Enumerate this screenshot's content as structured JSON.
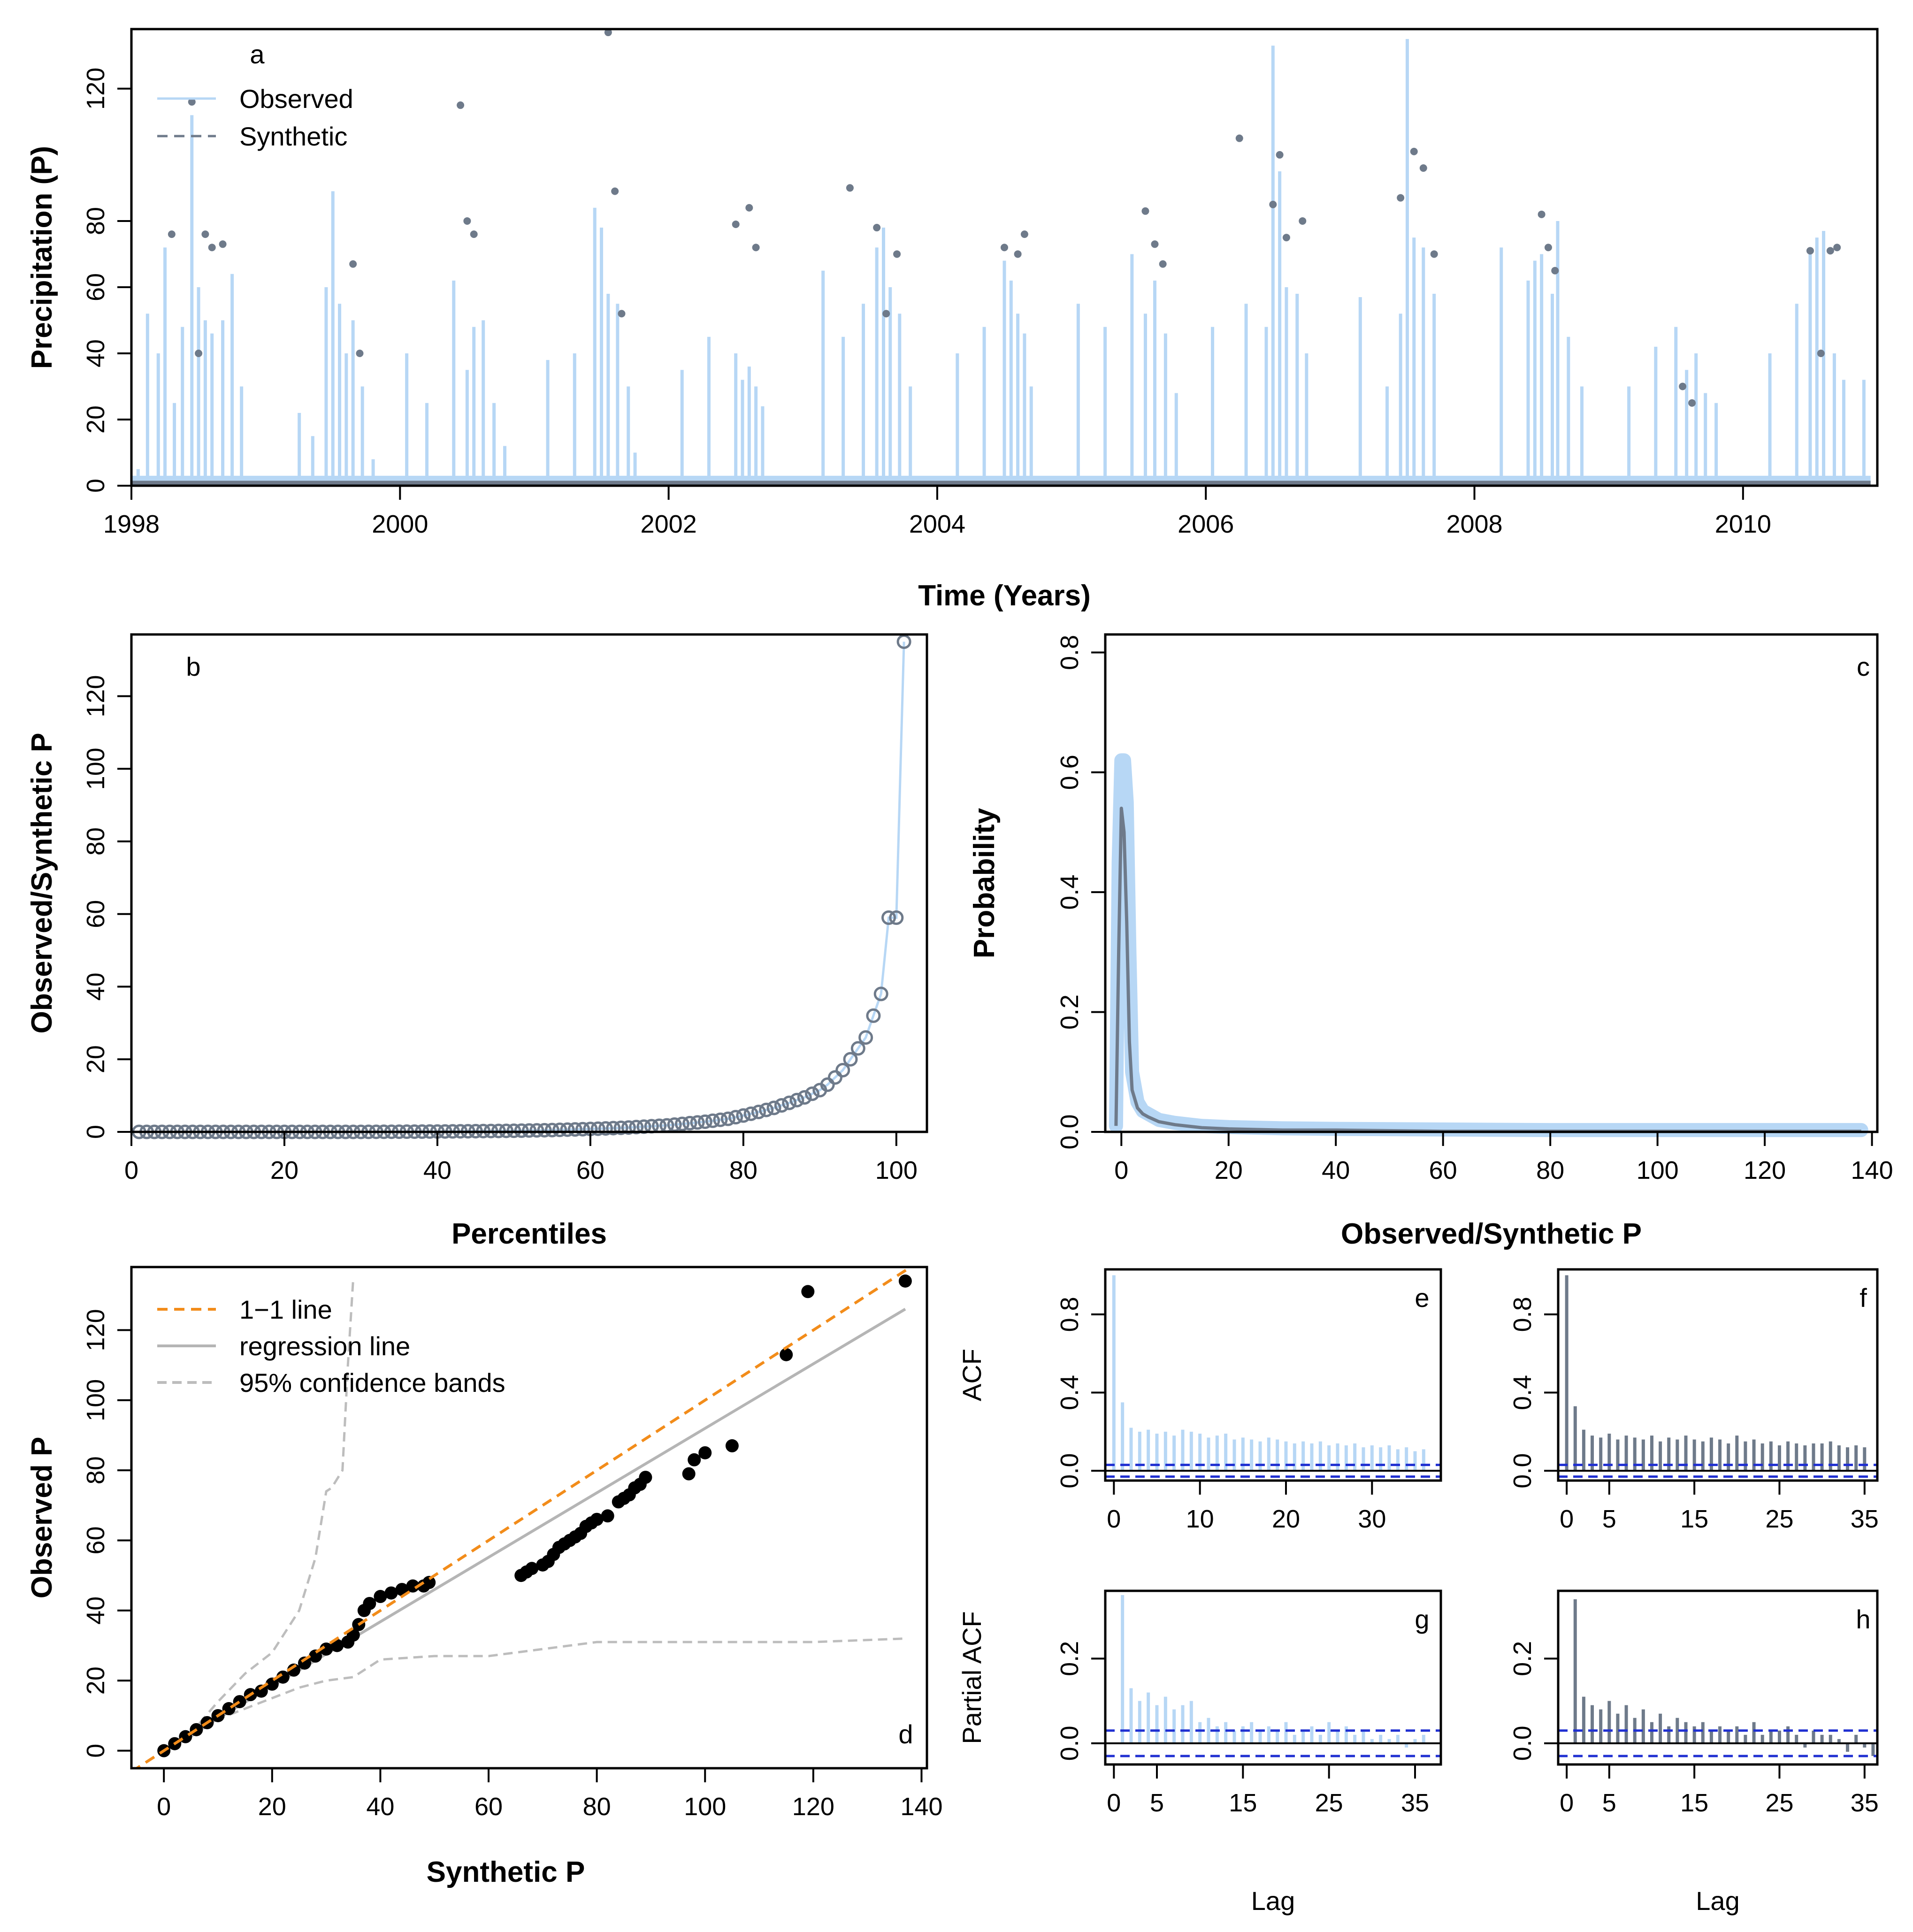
{
  "colors": {
    "observed": "#b7d7f5",
    "synthetic": "#6e7a8a",
    "one_to_one": "#f28c1a",
    "regression": "#b5b5b5",
    "confidence": "#bdbdbd",
    "qq_points": "#000000",
    "ci_line": "#1f2fd1"
  },
  "chart_data": [
    {
      "id": "a",
      "type": "line",
      "panel_label": "a",
      "xlabel": "Time (Years)",
      "ylabel": "Precipitation (P)",
      "xlim": [
        1998,
        2011
      ],
      "ylim": [
        0,
        138
      ],
      "x_ticks": [
        "1998",
        "2000",
        "2002",
        "2004",
        "2006",
        "2008",
        "2010"
      ],
      "y_ticks": [
        "0",
        "20",
        "40",
        "60",
        "80",
        "120"
      ],
      "legend": [
        {
          "name": "Observed",
          "style": "solid"
        },
        {
          "name": "Synthetic",
          "style": "dashed"
        }
      ],
      "series": [
        {
          "name": "Observed",
          "x": [
            1998.05,
            1998.12,
            1998.2,
            1998.25,
            1998.32,
            1998.38,
            1998.45,
            1998.5,
            1998.55,
            1998.6,
            1998.68,
            1998.75,
            1998.82,
            1999.25,
            1999.35,
            1999.45,
            1999.5,
            1999.55,
            1999.6,
            1999.65,
            1999.72,
            1999.8,
            2000.05,
            2000.2,
            2000.4,
            2000.5,
            2000.55,
            2000.62,
            2000.7,
            2000.78,
            2001.1,
            2001.3,
            2001.45,
            2001.5,
            2001.55,
            2001.62,
            2001.7,
            2001.75,
            2002.1,
            2002.3,
            2002.5,
            2002.55,
            2002.6,
            2002.65,
            2002.7,
            2003.15,
            2003.3,
            2003.45,
            2003.55,
            2003.6,
            2003.65,
            2003.72,
            2003.8,
            2004.15,
            2004.35,
            2004.5,
            2004.55,
            2004.6,
            2004.65,
            2004.7,
            2005.05,
            2005.25,
            2005.45,
            2005.55,
            2005.62,
            2005.7,
            2005.78,
            2006.05,
            2006.3,
            2006.45,
            2006.5,
            2006.55,
            2006.6,
            2006.68,
            2006.75,
            2007.15,
            2007.35,
            2007.45,
            2007.5,
            2007.55,
            2007.62,
            2007.7,
            2008.2,
            2008.4,
            2008.45,
            2008.5,
            2008.58,
            2008.62,
            2008.7,
            2008.8,
            2009.15,
            2009.35,
            2009.5,
            2009.58,
            2009.65,
            2009.72,
            2009.8,
            2010.2,
            2010.4,
            2010.5,
            2010.55,
            2010.6,
            2010.68,
            2010.75,
            2010.9
          ],
          "y": [
            5,
            52,
            40,
            72,
            25,
            48,
            112,
            60,
            50,
            46,
            50,
            64,
            30,
            22,
            15,
            60,
            89,
            55,
            40,
            50,
            30,
            8,
            40,
            25,
            62,
            35,
            48,
            50,
            25,
            12,
            38,
            40,
            84,
            78,
            58,
            55,
            30,
            10,
            35,
            45,
            40,
            32,
            36,
            30,
            24,
            65,
            45,
            55,
            72,
            78,
            60,
            52,
            30,
            40,
            48,
            68,
            62,
            52,
            46,
            30,
            55,
            48,
            70,
            52,
            62,
            46,
            28,
            48,
            55,
            48,
            133,
            95,
            60,
            58,
            40,
            57,
            30,
            52,
            135,
            75,
            72,
            58,
            72,
            62,
            68,
            70,
            58,
            80,
            45,
            30,
            30,
            42,
            48,
            35,
            40,
            28,
            25,
            40,
            55,
            70,
            75,
            77,
            40,
            32,
            32
          ]
        },
        {
          "name": "Synthetic",
          "x": [
            1998.3,
            1998.45,
            1998.5,
            1998.55,
            1998.6,
            1998.68,
            1999.65,
            1999.7,
            2000.45,
            2000.5,
            2000.55,
            2001.55,
            2001.6,
            2001.65,
            2002.5,
            2002.6,
            2002.65,
            2003.35,
            2003.55,
            2003.62,
            2003.7,
            2004.5,
            2004.6,
            2004.65,
            2005.55,
            2005.62,
            2005.68,
            2006.25,
            2006.5,
            2006.55,
            2006.6,
            2006.72,
            2007.45,
            2007.55,
            2007.62,
            2007.7,
            2008.5,
            2008.55,
            2008.6,
            2009.55,
            2009.62,
            2010.5,
            2010.58,
            2010.65,
            2010.7
          ],
          "y": [
            76,
            116,
            40,
            76,
            72,
            73,
            67,
            40,
            115,
            80,
            76,
            137,
            89,
            52,
            79,
            84,
            72,
            90,
            78,
            52,
            70,
            72,
            70,
            76,
            83,
            73,
            67,
            105,
            85,
            100,
            75,
            80,
            87,
            101,
            96,
            70,
            82,
            72,
            65,
            30,
            25,
            71,
            40,
            71,
            72
          ]
        }
      ]
    },
    {
      "id": "b",
      "type": "line",
      "panel_label": "b",
      "xlabel": "Percentiles",
      "ylabel": "Observed/Synthetic P",
      "xlim": [
        0,
        104
      ],
      "ylim": [
        0,
        137
      ],
      "x_ticks": [
        "0",
        "20",
        "40",
        "60",
        "80",
        "100"
      ],
      "y_ticks": [
        "0",
        "20",
        "40",
        "60",
        "80",
        "100",
        "120"
      ],
      "x": [
        1,
        10,
        20,
        30,
        40,
        50,
        55,
        60,
        65,
        70,
        75,
        78,
        80,
        82,
        84,
        86,
        88,
        90,
        91,
        92,
        93,
        94,
        95,
        96,
        97,
        98,
        99,
        100,
        101
      ],
      "values": [
        0,
        0,
        0,
        0,
        0.1,
        0.3,
        0.5,
        0.8,
        1.2,
        1.8,
        2.8,
        3.6,
        4.5,
        5.5,
        6.6,
        8,
        9.5,
        11.5,
        13,
        15,
        17,
        20,
        23,
        26,
        32,
        38,
        59,
        59,
        135
      ]
    },
    {
      "id": "c",
      "type": "area",
      "panel_label": "c",
      "xlabel": "Observed/Synthetic P",
      "ylabel": "Probability",
      "xlim": [
        -3,
        141
      ],
      "ylim": [
        0,
        0.83
      ],
      "x_ticks": [
        "0",
        "20",
        "40",
        "60",
        "80",
        "100",
        "120",
        "140"
      ],
      "y_ticks": [
        "0.0",
        "0.2",
        "0.4",
        "0.6",
        "0.8"
      ],
      "x": [
        -1,
        -0.5,
        0,
        0.5,
        1,
        1.5,
        2,
        3,
        4,
        5,
        7,
        10,
        15,
        20,
        30,
        40,
        60,
        80,
        100,
        120,
        138
      ],
      "series": [
        {
          "name": "Observed",
          "values": [
            0.01,
            0.45,
            0.62,
            0.62,
            0.55,
            0.3,
            0.1,
            0.05,
            0.035,
            0.03,
            0.02,
            0.015,
            0.01,
            0.008,
            0.006,
            0.005,
            0.004,
            0.003,
            0.003,
            0.003,
            0.003
          ]
        },
        {
          "name": "Synthetic",
          "values": [
            0.01,
            0.3,
            0.54,
            0.5,
            0.35,
            0.15,
            0.07,
            0.04,
            0.03,
            0.025,
            0.017,
            0.012,
            0.007,
            0.005,
            0.003,
            0.003,
            0.001,
            0.001,
            0.001,
            0.001,
            0.001
          ]
        }
      ]
    },
    {
      "id": "d",
      "type": "scatter",
      "panel_label": "d",
      "xlabel": "Synthetic P",
      "ylabel": "Observed P",
      "xlim": [
        -6,
        141
      ],
      "ylim": [
        -5,
        138
      ],
      "x_ticks": [
        "0",
        "20",
        "40",
        "60",
        "80",
        "100",
        "120",
        "140"
      ],
      "y_ticks": [
        "0",
        "20",
        "40",
        "60",
        "80",
        "100",
        "120"
      ],
      "legend": [
        {
          "name": "1−1 line",
          "style": "dashed-orange"
        },
        {
          "name": "regression line",
          "style": "solid-gray"
        },
        {
          "name": "95% confidence bands",
          "style": "dashed-gray"
        }
      ],
      "regression": [
        [
          0,
          0
        ],
        [
          137,
          126
        ]
      ],
      "band_upper": {
        "x": [
          0,
          5,
          10,
          15,
          20,
          25,
          28,
          30,
          31,
          33,
          34,
          35
        ],
        "y": [
          0,
          5,
          14,
          22,
          28,
          40,
          55,
          74,
          75,
          80,
          110,
          135
        ]
      },
      "band_lower": {
        "x": [
          0,
          5,
          10,
          15,
          20,
          25,
          30,
          35,
          40,
          50,
          60,
          70,
          80,
          100,
          120,
          137
        ],
        "y": [
          0,
          4,
          9,
          12,
          15,
          18,
          20,
          21,
          26,
          27,
          27,
          29,
          31,
          31,
          31,
          32
        ]
      },
      "points": {
        "x": [
          0,
          2,
          4,
          6,
          8,
          10,
          12,
          14,
          16,
          18,
          20,
          22,
          24,
          26,
          28,
          30,
          32,
          34,
          35,
          36,
          37,
          38,
          40,
          42,
          44,
          46,
          48,
          49,
          66,
          67,
          68,
          70,
          71,
          72,
          73,
          74,
          75,
          76,
          77,
          78,
          79,
          80,
          82,
          84,
          85,
          86,
          87,
          88,
          89,
          97,
          98,
          100,
          105,
          115,
          119,
          137
        ],
        "y": [
          0,
          2,
          4,
          6,
          8,
          10,
          12,
          14,
          16,
          17,
          19,
          21,
          23,
          25,
          27,
          29,
          30,
          31,
          33,
          36,
          40,
          42,
          44,
          45,
          46,
          47,
          47,
          48,
          50,
          51,
          52,
          53,
          54,
          56,
          58,
          59,
          60,
          61,
          62,
          64,
          65,
          66,
          67,
          71,
          72,
          73,
          75,
          76,
          78,
          79,
          83,
          85,
          87,
          113,
          131,
          134
        ]
      }
    },
    {
      "id": "e",
      "type": "bar",
      "panel_label": "e",
      "ylabel": "ACF",
      "xlim": [
        -1,
        38
      ],
      "ylim": [
        -0.05,
        1.03
      ],
      "x_ticks": [
        "0",
        "10",
        "20",
        "30"
      ],
      "y_ticks": [
        "0.0",
        "0.4",
        "0.8"
      ],
      "ci": [
        0.03,
        -0.03
      ],
      "values": [
        1.0,
        0.35,
        0.22,
        0.2,
        0.21,
        0.19,
        0.2,
        0.18,
        0.21,
        0.2,
        0.19,
        0.17,
        0.18,
        0.19,
        0.16,
        0.17,
        0.16,
        0.15,
        0.17,
        0.16,
        0.15,
        0.14,
        0.15,
        0.14,
        0.15,
        0.13,
        0.14,
        0.13,
        0.14,
        0.12,
        0.13,
        0.12,
        0.13,
        0.11,
        0.12,
        0.1,
        0.11
      ]
    },
    {
      "id": "f",
      "type": "bar",
      "panel_label": "f",
      "ylabel": "",
      "xlim": [
        -1,
        36.5
      ],
      "ylim": [
        -0.05,
        1.03
      ],
      "x_ticks": [
        "0",
        "5",
        "15",
        "25",
        "35"
      ],
      "y_ticks": [
        "0.0",
        "0.4",
        "0.8"
      ],
      "ci": [
        0.03,
        -0.03
      ],
      "values": [
        1.0,
        0.33,
        0.21,
        0.18,
        0.17,
        0.19,
        0.16,
        0.18,
        0.17,
        0.16,
        0.18,
        0.15,
        0.17,
        0.16,
        0.18,
        0.16,
        0.15,
        0.17,
        0.16,
        0.14,
        0.18,
        0.15,
        0.16,
        0.14,
        0.15,
        0.13,
        0.15,
        0.14,
        0.13,
        0.14,
        0.14,
        0.15,
        0.13,
        0.12,
        0.13,
        0.12
      ]
    },
    {
      "id": "g",
      "type": "bar",
      "panel_label": "g",
      "ylabel": "Partial ACF",
      "xlabel": "Lag",
      "xlim": [
        -1,
        38
      ],
      "ylim": [
        -0.05,
        0.36
      ],
      "x_ticks": [
        "0",
        "5",
        "15",
        "25",
        "35"
      ],
      "y_ticks": [
        "0.0",
        "0.2"
      ],
      "ci": [
        0.03,
        -0.03
      ],
      "values": [
        0.35,
        0.13,
        0.1,
        0.12,
        0.09,
        0.11,
        0.08,
        0.09,
        0.1,
        0.05,
        0.06,
        0.04,
        0.05,
        0.03,
        0.04,
        0.05,
        0.03,
        0.04,
        0.03,
        0.05,
        0.02,
        0.03,
        0.04,
        0.02,
        0.05,
        0.03,
        0.04,
        0.02,
        0.03,
        0.01,
        0.02,
        0.01,
        0.02,
        -0.01,
        0.01,
        0.02
      ]
    },
    {
      "id": "h",
      "type": "bar",
      "panel_label": "h",
      "ylabel": "",
      "xlabel": "Lag",
      "xlim": [
        -1,
        36.5
      ],
      "ylim": [
        -0.05,
        0.36
      ],
      "x_ticks": [
        "0",
        "5",
        "15",
        "25",
        "35"
      ],
      "y_ticks": [
        "0.0",
        "0.2"
      ],
      "ci": [
        0.03,
        -0.03
      ],
      "values": [
        0.34,
        0.11,
        0.09,
        0.08,
        0.1,
        0.07,
        0.09,
        0.06,
        0.08,
        0.05,
        0.07,
        0.04,
        0.06,
        0.05,
        0.04,
        0.05,
        0.03,
        0.04,
        0.03,
        0.04,
        0.02,
        0.05,
        0.02,
        0.03,
        0.03,
        0.04,
        0.02,
        -0.01,
        0.03,
        0.02,
        0.02,
        0.01,
        -0.02,
        0.02,
        -0.01,
        -0.03
      ]
    }
  ]
}
